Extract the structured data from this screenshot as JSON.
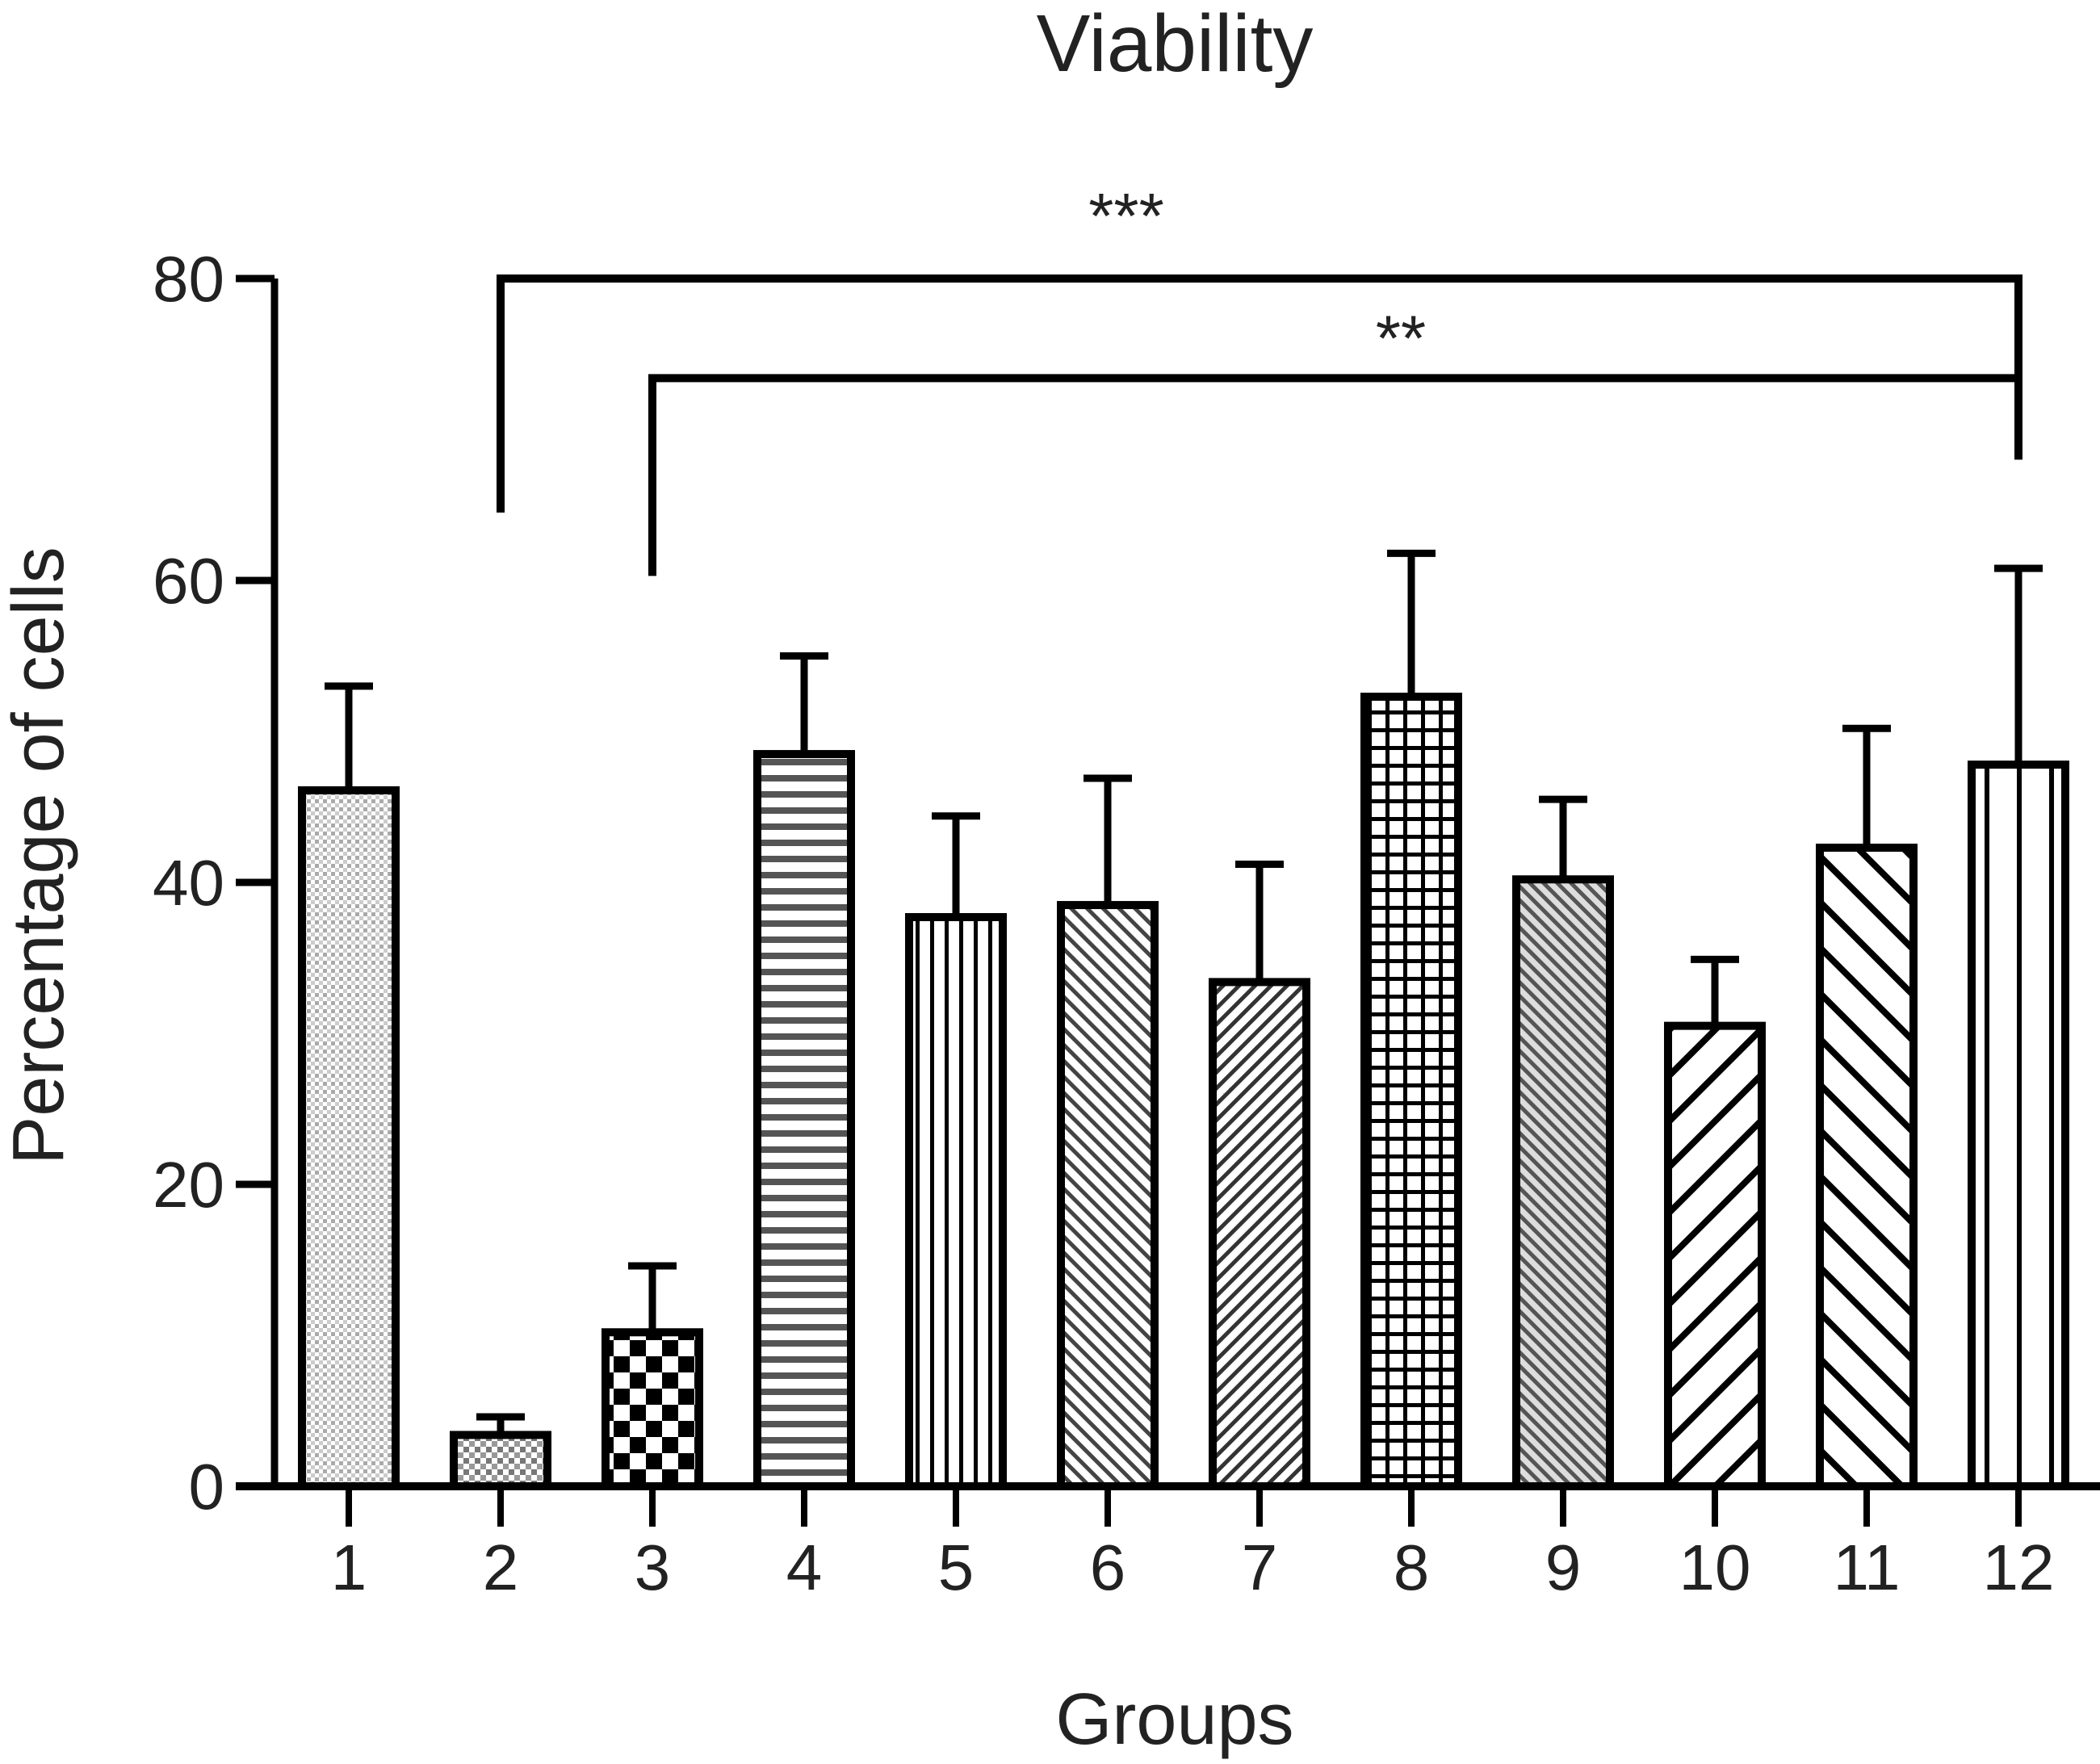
{
  "chart_data": {
    "type": "bar",
    "title": "Viability",
    "xlabel": "Groups",
    "ylabel": "Percentage of cells",
    "ylim": [
      0,
      80
    ],
    "yticks": [
      0,
      20,
      40,
      60,
      80
    ],
    "grid": false,
    "categories": [
      "1",
      "2",
      "3",
      "4",
      "5",
      "6",
      "7",
      "8",
      "9",
      "10",
      "11",
      "12"
    ],
    "values": [
      46.1,
      3.4,
      10.2,
      48.5,
      37.7,
      38.5,
      33.4,
      52.3,
      40.2,
      30.5,
      42.3,
      47.8
    ],
    "error_upper": [
      53.0,
      4.6,
      14.6,
      55.0,
      44.4,
      46.9,
      41.2,
      61.8,
      45.5,
      34.9,
      50.2,
      60.8
    ],
    "fill_patterns": [
      "fine-dots",
      "small-check",
      "large-check",
      "horizontal-lines",
      "vertical-lines",
      "fine-diagonal-up",
      "diagonal-down",
      "grid",
      "fine-diagonal-down",
      "wide-diagonal-down",
      "wide-diagonal-up",
      "vertical-wide"
    ],
    "significance": [
      {
        "label": "***",
        "from": "2",
        "to": "12",
        "y": 80,
        "left_leg_to": 64.5,
        "right_leg_to": 68
      },
      {
        "label": "**",
        "from": "3",
        "to": "12",
        "y": 73.4,
        "left_leg_to": 60.3,
        "right_leg_to": 73.4
      }
    ]
  }
}
